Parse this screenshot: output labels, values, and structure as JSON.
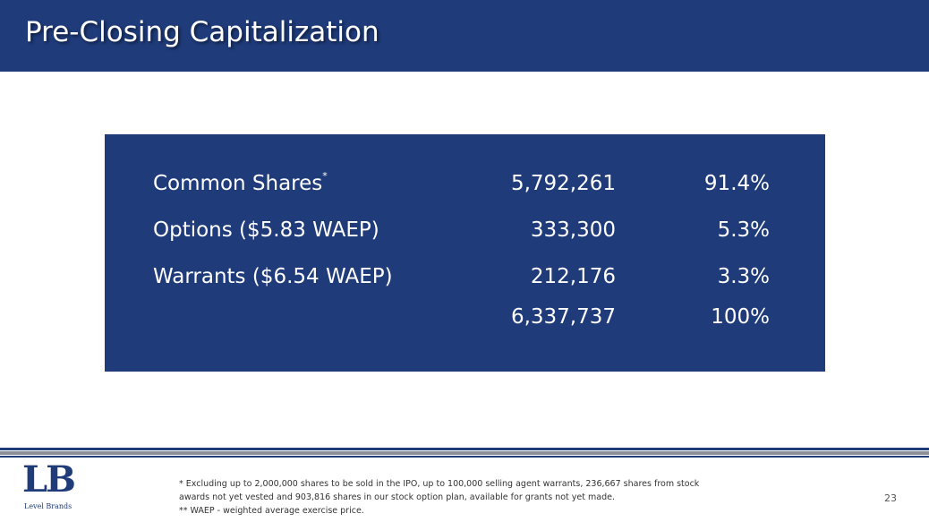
{
  "header": {
    "title": "Pre-Closing Capitalization"
  },
  "table": {
    "rows": [
      {
        "label": "Common Shares",
        "marker": "*",
        "shares": "5,792,261",
        "percent": "91.4%"
      },
      {
        "label": "Options ($5.83 WAEP)",
        "shares": "333,300",
        "percent": "5.3%"
      },
      {
        "label": "Warrants ($6.54 WAEP)",
        "shares": "212,176",
        "percent": "3.3%"
      }
    ],
    "total": {
      "shares": "6,337,737",
      "percent": "100%"
    }
  },
  "footer": {
    "notes": [
      "* Excluding up to 2,000,000 shares to be sold in the IPO, up to 100,000 selling agent warrants, 236,667 shares from stock",
      "awards not yet vested and 903,816 shares in our stock option plan, available for grants not yet made.",
      "** WAEP  - weighted average exercise price."
    ],
    "logo": {
      "mark": "LB",
      "name": "Level Brands"
    },
    "page_number": "23"
  }
}
